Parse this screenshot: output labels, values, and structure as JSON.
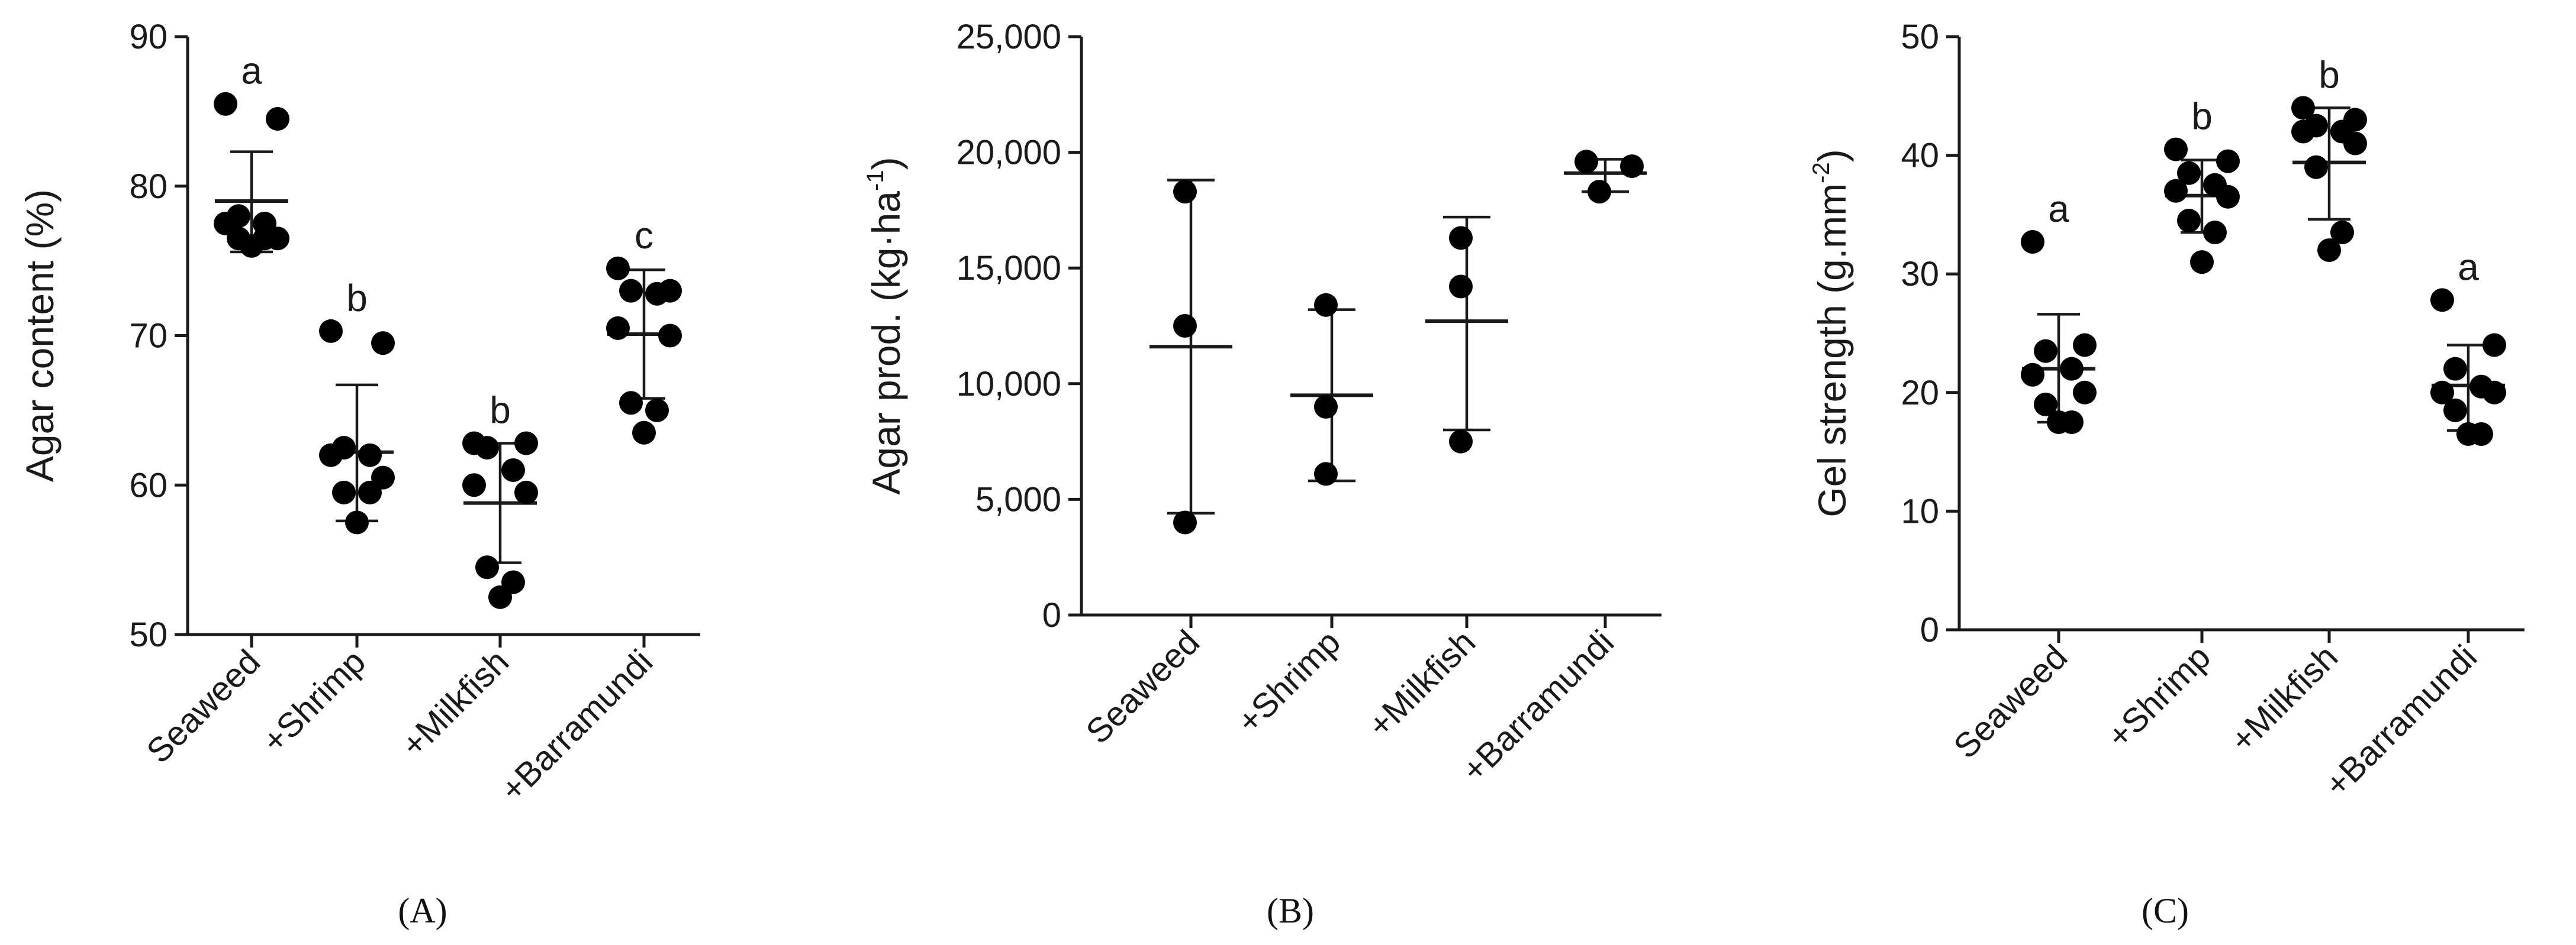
{
  "chart_data": [
    {
      "type": "scatter",
      "panel_label": "(A)",
      "ylabel": "Agar content (%)",
      "ylabel_sup": "",
      "ylabel_tail": "",
      "ylim": [
        50,
        90
      ],
      "yticks": [
        50,
        60,
        70,
        80,
        90
      ],
      "ytick_labels": [
        "50",
        "60",
        "70",
        "80",
        "90"
      ],
      "categories": [
        "Seaweed",
        "+Shrimp",
        "+Milkfish",
        "+Barramundi"
      ],
      "group_letters": [
        "a",
        "b",
        "b",
        "c"
      ],
      "groups": [
        {
          "points": [
            85.5,
            84.5,
            78.0,
            77.5,
            77.5,
            76.5,
            76.5,
            76.5,
            76.0
          ],
          "mean": 79.0,
          "sd_low": 75.6,
          "sd_high": 82.3
        },
        {
          "points": [
            70.3,
            69.5,
            62.5,
            62.0,
            62.0,
            60.5,
            59.5,
            59.5,
            57.5
          ],
          "mean": 62.2,
          "sd_low": 57.6,
          "sd_high": 66.7
        },
        {
          "points": [
            62.8,
            62.8,
            62.5,
            61.0,
            60.0,
            59.5,
            54.5,
            53.5,
            52.5
          ],
          "mean": 58.8,
          "sd_low": 54.8,
          "sd_high": 62.8
        },
        {
          "points": [
            74.5,
            73.0,
            73.0,
            72.8,
            70.5,
            70.0,
            65.5,
            65.0,
            63.5
          ],
          "mean": 70.1,
          "sd_low": 65.8,
          "sd_high": 74.4
        }
      ]
    },
    {
      "type": "scatter",
      "panel_label": "(B)",
      "ylabel": "Agar prod. (kg·ha",
      "ylabel_sup": "-1",
      "ylabel_tail": ")",
      "ylim": [
        0,
        25000
      ],
      "yticks": [
        0,
        5000,
        10000,
        15000,
        20000,
        25000
      ],
      "ytick_labels": [
        "0",
        "5,000",
        "10,000",
        "15,000",
        "20,000",
        "25,000"
      ],
      "categories": [
        "Seaweed",
        "+Shrimp",
        "+Milkfish",
        "+Barramundi"
      ],
      "group_letters": [
        "",
        "",
        "",
        ""
      ],
      "groups": [
        {
          "points": [
            18300,
            12500,
            4000
          ],
          "mean": 11600,
          "sd_low": 4400,
          "sd_high": 18800
        },
        {
          "points": [
            13400,
            9000,
            6100
          ],
          "mean": 9500,
          "sd_low": 5800,
          "sd_high": 13200
        },
        {
          "points": [
            16300,
            14200,
            7500
          ],
          "mean": 12700,
          "sd_low": 8000,
          "sd_high": 17200
        },
        {
          "points": [
            19600,
            19400,
            18300
          ],
          "mean": 19100,
          "sd_low": 18300,
          "sd_high": 19700
        }
      ]
    },
    {
      "type": "scatter",
      "panel_label": "(C)",
      "ylabel": "Gel strength (g.mm",
      "ylabel_sup": "-2",
      "ylabel_tail": ")",
      "ylim": [
        0,
        50
      ],
      "yticks": [
        0,
        10,
        20,
        30,
        40,
        50
      ],
      "ytick_labels": [
        "0",
        "10",
        "20",
        "30",
        "40",
        "50"
      ],
      "categories": [
        "Seaweed",
        "+Shrimp",
        "+Milkfish",
        "+Barramundi"
      ],
      "group_letters": [
        "a",
        "b",
        "b",
        "a"
      ],
      "groups": [
        {
          "points": [
            32.7,
            24.0,
            23.5,
            22.0,
            21.5,
            20.0,
            19.0,
            17.5,
            17.5
          ],
          "mean": 22.0,
          "sd_low": 17.5,
          "sd_high": 26.6
        },
        {
          "points": [
            40.5,
            39.5,
            38.5,
            37.5,
            37.0,
            36.5,
            34.5,
            33.5,
            31.0
          ],
          "mean": 36.6,
          "sd_low": 33.5,
          "sd_high": 39.6
        },
        {
          "points": [
            44.0,
            43.0,
            42.5,
            42.0,
            42.0,
            41.0,
            39.0,
            33.5,
            32.0
          ],
          "mean": 39.4,
          "sd_low": 34.6,
          "sd_high": 44.0
        },
        {
          "points": [
            27.8,
            24.0,
            22.0,
            20.5,
            20.0,
            20.0,
            18.5,
            16.5,
            16.5
          ],
          "mean": 20.6,
          "sd_low": 16.8,
          "sd_high": 24.0
        }
      ]
    }
  ]
}
